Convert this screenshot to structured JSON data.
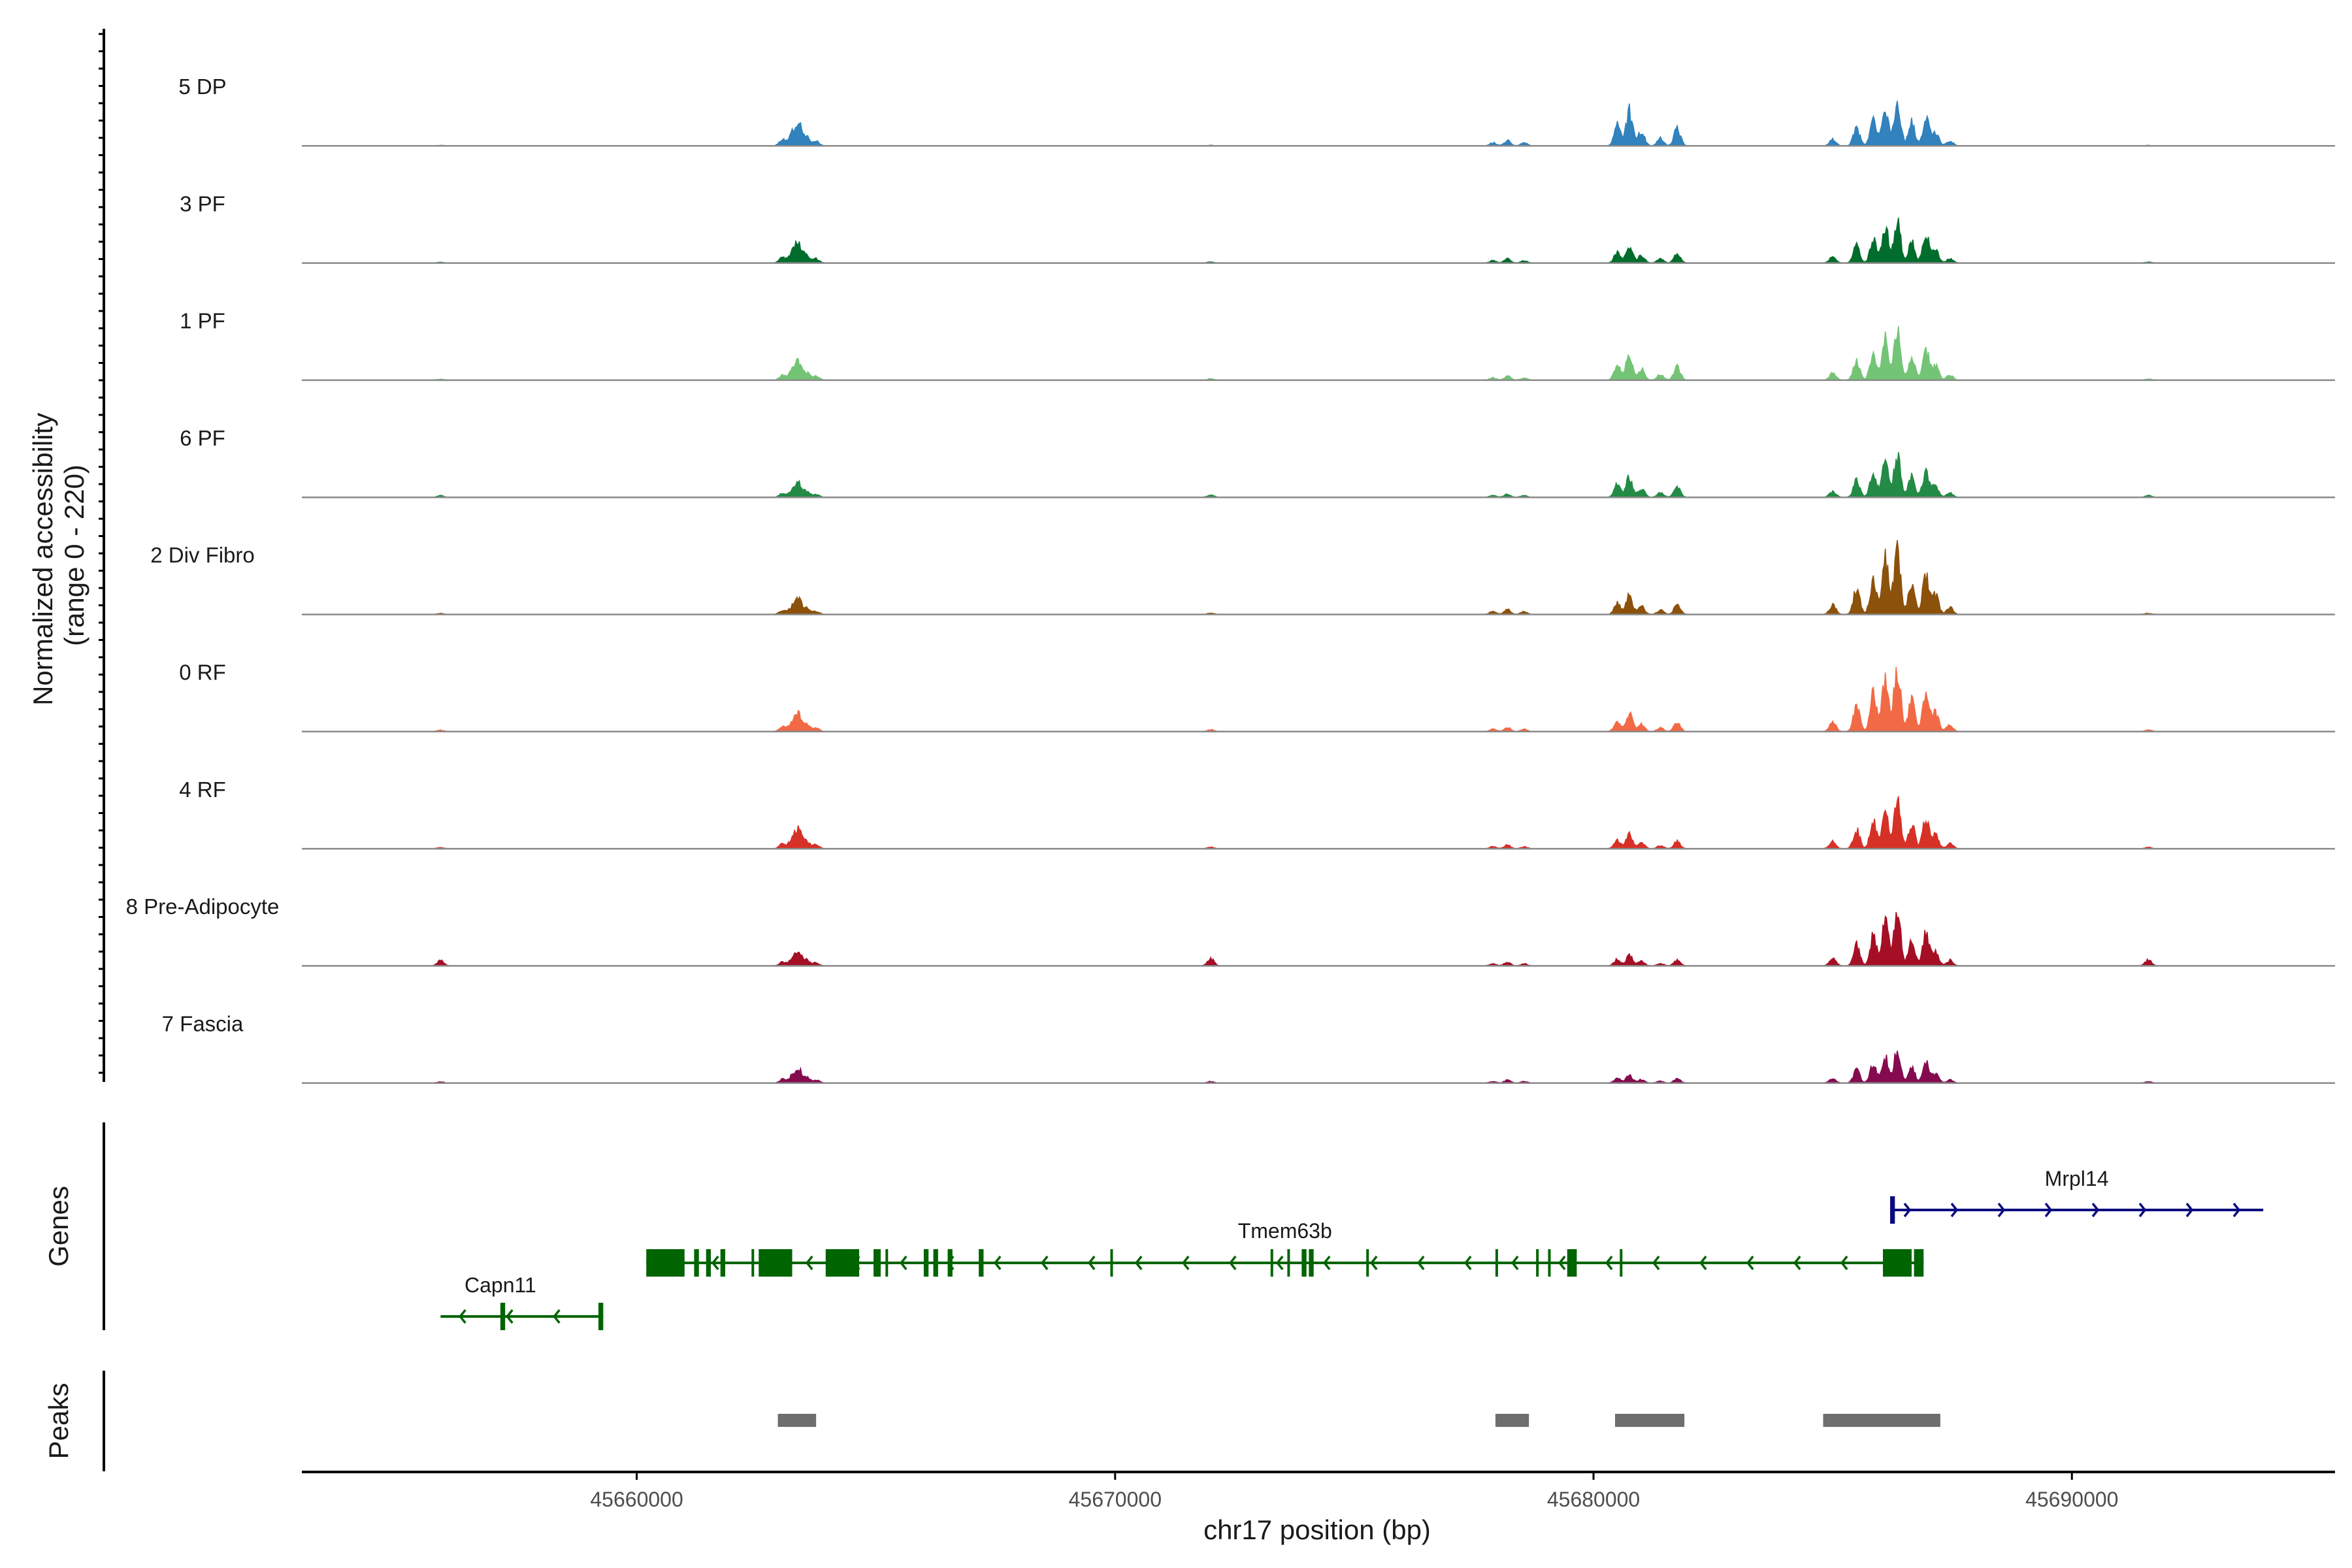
{
  "chart_data": {
    "type": "area",
    "title": "",
    "ylabel": "Normalized accessibility",
    "ylabel_range": "(range 0 - 220)",
    "xlabel": "chr17 position (bp)",
    "xlim": [
      45653000,
      45695500
    ],
    "ylim": [
      0,
      220
    ],
    "x_ticks": [
      45660000,
      45670000,
      45680000,
      45690000
    ],
    "x_tick_labels": [
      "45660000",
      "45670000",
      "45680000",
      "45690000"
    ],
    "coverage_baseline": 0.2,
    "peak_shapes": [
      {
        "id": "A",
        "segments": [
          [
            45663050,
            0.28
          ],
          [
            45663250,
            0.5
          ],
          [
            45663380,
            1.0
          ],
          [
            45663550,
            0.42
          ],
          [
            45663750,
            0.22
          ]
        ]
      },
      {
        "id": "B",
        "segments": [
          [
            45677900,
            0.3
          ],
          [
            45678200,
            0.5
          ],
          [
            45678550,
            0.28
          ]
        ]
      },
      {
        "id": "C",
        "segments": [
          [
            45680500,
            0.6
          ],
          [
            45680750,
            1.0
          ],
          [
            45681000,
            0.42
          ],
          [
            45681400,
            0.22
          ],
          [
            45681750,
            0.5
          ]
        ]
      },
      {
        "id": "D",
        "segments": [
          [
            45685000,
            0.14
          ],
          [
            45685500,
            0.38
          ],
          [
            45685850,
            0.55
          ],
          [
            45686100,
            0.8
          ],
          [
            45686350,
            1.0
          ],
          [
            45686650,
            0.5
          ],
          [
            45686950,
            0.6
          ],
          [
            45687150,
            0.28
          ],
          [
            45687450,
            0.1
          ]
        ]
      },
      {
        "id": "E",
        "segments": [
          [
            45672000,
            0.35
          ],
          [
            45691600,
            0.3
          ],
          [
            45655900,
            0.25
          ]
        ]
      }
    ],
    "series": [
      {
        "name": "5 DP",
        "color": "#3182bd",
        "peaks": {
          "A": 48,
          "B": 24,
          "C": 76,
          "D": 102,
          "E": 4
        }
      },
      {
        "name": "3 PF",
        "color": "#006d2c",
        "peaks": {
          "A": 42,
          "B": 18,
          "C": 40,
          "D": 98,
          "E": 6
        }
      },
      {
        "name": "1 PF",
        "color": "#74c476",
        "peaks": {
          "A": 38,
          "B": 18,
          "C": 58,
          "D": 110,
          "E": 8
        }
      },
      {
        "name": "6 PF",
        "color": "#238b45",
        "peaks": {
          "A": 30,
          "B": 14,
          "C": 46,
          "D": 94,
          "E": 14
        }
      },
      {
        "name": "2 Div Fibro",
        "color": "#8c510a",
        "peaks": {
          "A": 32,
          "B": 22,
          "C": 42,
          "D": 150,
          "E": 8
        }
      },
      {
        "name": "0 RF",
        "color": "#f16a45",
        "peaks": {
          "A": 38,
          "B": 18,
          "C": 40,
          "D": 148,
          "E": 12
        }
      },
      {
        "name": "4 RF",
        "color": "#d73027",
        "peaks": {
          "A": 40,
          "B": 16,
          "C": 32,
          "D": 110,
          "E": 10
        }
      },
      {
        "name": "8 Pre-Adipocyte",
        "color": "#a50f26",
        "peaks": {
          "A": 30,
          "B": 16,
          "C": 24,
          "D": 122,
          "E": 46
        }
      },
      {
        "name": "7 Fascia",
        "color": "#850b4f",
        "peaks": {
          "A": 30,
          "B": 12,
          "C": 18,
          "D": 72,
          "E": 10
        }
      }
    ],
    "gene_track": {
      "label": "Genes",
      "genes": [
        {
          "name": "Tmem63b",
          "strand": "-",
          "start": 45660200,
          "end": 45686900,
          "color": "#006400",
          "exons": [
            [
              45660200,
              45661000
            ],
            [
              45661200,
              45661300
            ],
            [
              45661450,
              45661550
            ],
            [
              45661750,
              45661850
            ],
            [
              45662400,
              45662450
            ],
            [
              45662550,
              45663250
            ],
            [
              45663950,
              45664650
            ],
            [
              45664950,
              45665100
            ],
            [
              45665200,
              45665250
            ],
            [
              45666000,
              45666100
            ],
            [
              45666200,
              45666300
            ],
            [
              45666500,
              45666600
            ],
            [
              45667150,
              45667250
            ],
            [
              45669900,
              45669950
            ],
            [
              45673250,
              45673300
            ],
            [
              45673600,
              45673650
            ],
            [
              45673900,
              45674000
            ],
            [
              45674050,
              45674150
            ],
            [
              45675250,
              45675300
            ],
            [
              45677950,
              45678000
            ],
            [
              45678800,
              45678850
            ],
            [
              45679050,
              45679100
            ],
            [
              45679450,
              45679650
            ],
            [
              45680550,
              45680600
            ],
            [
              45686050,
              45686650
            ],
            [
              45686700,
              45686900
            ]
          ]
        },
        {
          "name": "Mrpl14",
          "strand": "+",
          "start": 45686200,
          "end": 45694000,
          "color": "#0b0b7f",
          "exons": [
            [
              45686200,
              45686300
            ]
          ]
        },
        {
          "name": "Capn11",
          "strand": "-",
          "start": 45655900,
          "end": 45659300,
          "color": "#006400",
          "exons": [
            [
              45657150,
              45657250
            ],
            [
              45659200,
              45659300
            ]
          ]
        }
      ]
    },
    "peaks_track": {
      "label": "Peaks",
      "color": "#6e6e6e",
      "regions": [
        [
          45662950,
          45663750
        ],
        [
          45677950,
          45678650
        ],
        [
          45680450,
          45681900
        ],
        [
          45684800,
          45687250
        ]
      ]
    }
  }
}
